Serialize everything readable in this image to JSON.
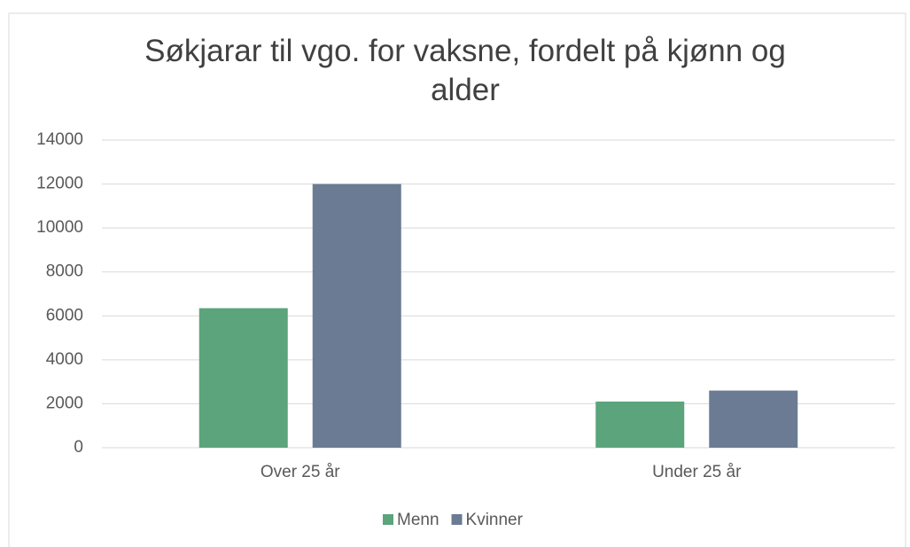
{
  "chart_data": {
    "type": "bar",
    "title": "Søkjarar til vgo. for vaksne, fordelt på kjønn og alder",
    "categories": [
      "Over 25 år",
      "Under 25 år"
    ],
    "series": [
      {
        "name": "Menn",
        "color": "#5ba47c",
        "values": [
          6350,
          2100
        ]
      },
      {
        "name": "Kvinner",
        "color": "#6b7b93",
        "values": [
          12000,
          2600
        ]
      }
    ],
    "ylim": [
      0,
      14000
    ],
    "yticks": [
      0,
      2000,
      4000,
      6000,
      8000,
      10000,
      12000,
      14000
    ],
    "grid": true,
    "legend": "bottom"
  }
}
